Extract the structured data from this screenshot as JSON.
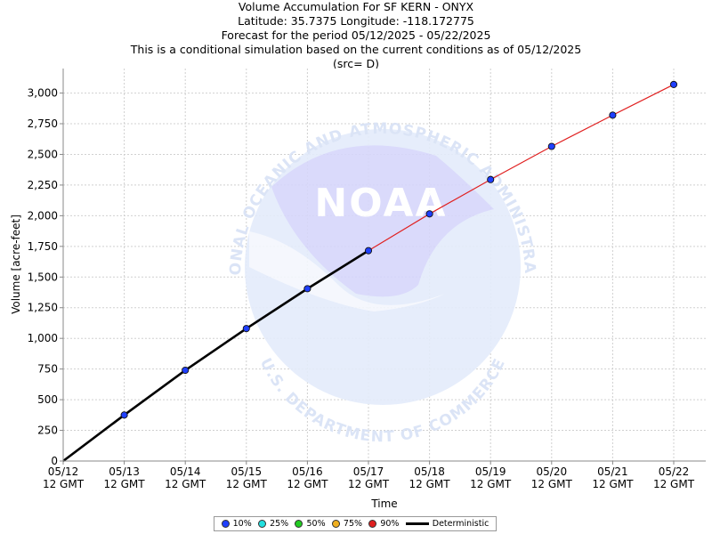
{
  "titles": [
    "Volume Accumulation For SF KERN - ONYX",
    "Latitude: 35.7375 Longitude: -118.172775",
    "Forecast for the period 05/12/2025 - 05/22/2025",
    "This is a conditional simulation based on the current conditions as of 05/12/2025",
    "(src= D)"
  ],
  "watermark": {
    "logo_text": "NOAA",
    "ring_top": "NATIONAL OCEANIC AND ATMOSPHERIC ADMINISTRATION",
    "ring_bottom": "U.S. DEPARTMENT OF COMMERCE"
  },
  "chart_data": {
    "type": "line",
    "xlabel": "Time",
    "ylabel": "Volume [acre-feet]",
    "x_ticks": [
      "05/12",
      "05/13",
      "05/14",
      "05/15",
      "05/16",
      "05/17",
      "05/18",
      "05/19",
      "05/20",
      "05/21",
      "05/22"
    ],
    "x_tick_sub": "12 GMT",
    "ylim": [
      0,
      3200
    ],
    "y_ticks": [
      "0",
      "250",
      "500",
      "750",
      "1,000",
      "1,250",
      "1,500",
      "1,750",
      "2,000",
      "2,250",
      "2,500",
      "2,750",
      "3,000"
    ],
    "grid": true,
    "series": [
      {
        "name": "10%",
        "color": "#1f3fff",
        "x": [
          "05/13",
          "05/14",
          "05/15",
          "05/16",
          "05/17",
          "05/18",
          "05/19",
          "05/20",
          "05/21",
          "05/22"
        ],
        "values": [
          375,
          740,
          1080,
          1405,
          1715,
          2015,
          2295,
          2565,
          2820,
          3070
        ]
      },
      {
        "name": "90%",
        "color": "#e02020",
        "x": [
          "05/17",
          "05/18",
          "05/19",
          "05/20",
          "05/21",
          "05/22"
        ],
        "values": [
          1715,
          2015,
          2295,
          2565,
          2820,
          3070
        ]
      },
      {
        "name": "Deterministic",
        "color": "#000000",
        "x": [
          "05/12",
          "05/13",
          "05/14",
          "05/15",
          "05/16",
          "05/17"
        ],
        "values": [
          0,
          375,
          740,
          1080,
          1405,
          1715
        ]
      }
    ],
    "legend": {
      "placement": "bottom",
      "items": [
        {
          "name": "10%",
          "color": "#1f3fff",
          "kind": "dot"
        },
        {
          "name": "25%",
          "color": "#22e0e0",
          "kind": "dot"
        },
        {
          "name": "50%",
          "color": "#22cc22",
          "kind": "dot"
        },
        {
          "name": "75%",
          "color": "#f0b020",
          "kind": "dot"
        },
        {
          "name": "90%",
          "color": "#e02020",
          "kind": "dot"
        },
        {
          "name": "Deterministic",
          "color": "#000000",
          "kind": "line"
        }
      ]
    }
  }
}
